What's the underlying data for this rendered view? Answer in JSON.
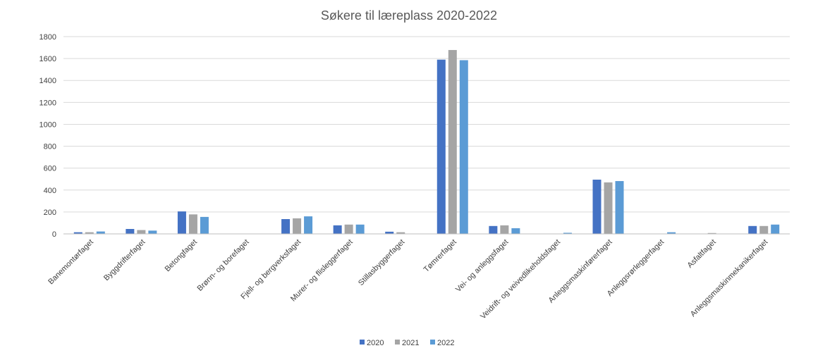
{
  "chart_data": {
    "type": "bar",
    "title": "Søkere til læreplass 2020-2022",
    "xlabel": "",
    "ylabel": "",
    "ylim": [
      0,
      1800
    ],
    "yticks": [
      0,
      200,
      400,
      600,
      800,
      1000,
      1200,
      1400,
      1600,
      1800
    ],
    "grid": true,
    "legend_position": "bottom",
    "categories": [
      "Banemontørfaget",
      "Byggdrifterfaget",
      "Betongfaget",
      "Brønn- og borefaget",
      "Fjell- og bergverksfaget",
      "Murer- og flisleggerfaget",
      "Stillasbyggerfaget",
      "Tømrerfaget",
      "Vei- og anleggsfaget",
      "Veidrift- og veivedlikeholdsfaget",
      "Anleggsmaskinførerfaget",
      "Anleggsrørleggerfaget",
      "Asfaltfaget",
      "Anleggsmaskinmekanikerfaget"
    ],
    "series": [
      {
        "name": "2020",
        "color": "#4472c4",
        "values": [
          15,
          45,
          205,
          2,
          135,
          78,
          20,
          1590,
          72,
          0,
          495,
          0,
          3,
          72
        ]
      },
      {
        "name": "2021",
        "color": "#a5a5a5",
        "values": [
          15,
          35,
          178,
          2,
          142,
          85,
          15,
          1678,
          78,
          0,
          470,
          0,
          8,
          72
        ]
      },
      {
        "name": "2022",
        "color": "#5b9bd5",
        "values": [
          22,
          30,
          155,
          2,
          160,
          85,
          3,
          1585,
          52,
          10,
          482,
          15,
          3,
          85
        ]
      }
    ]
  }
}
